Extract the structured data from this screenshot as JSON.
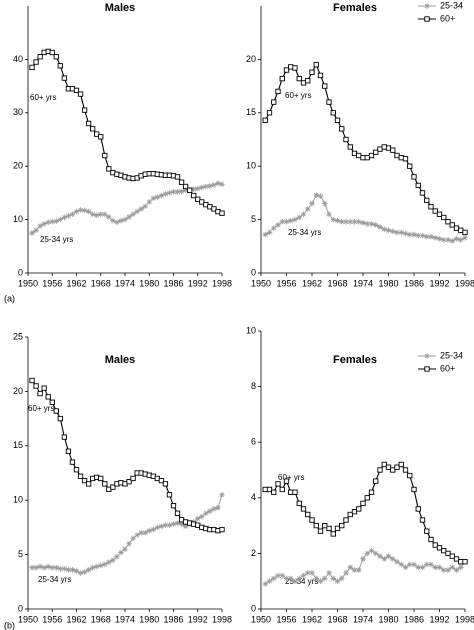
{
  "panel_labels": [
    "(a)",
    "(b)"
  ],
  "chart_data": [
    {
      "type": "line",
      "title": "Males",
      "annotations": [
        "60+ yrs",
        "25-34 yrs"
      ],
      "legend": false,
      "x": [
        1951,
        1952,
        1953,
        1954,
        1955,
        1956,
        1957,
        1958,
        1959,
        1960,
        1961,
        1962,
        1963,
        1964,
        1965,
        1966,
        1967,
        1968,
        1969,
        1970,
        1971,
        1972,
        1973,
        1974,
        1975,
        1976,
        1977,
        1978,
        1979,
        1980,
        1981,
        1982,
        1983,
        1984,
        1985,
        1986,
        1987,
        1988,
        1989,
        1990,
        1991,
        1992,
        1993,
        1994,
        1995,
        1996,
        1997,
        1998
      ],
      "xlim": [
        1950,
        1998
      ],
      "xticks": [
        1950,
        1956,
        1962,
        1968,
        1974,
        1980,
        1986,
        1992,
        1998
      ],
      "ylim": [
        0,
        50
      ],
      "yticks": [
        0,
        10,
        20,
        30,
        40
      ],
      "series": [
        {
          "color": "#999999",
          "marker": "star",
          "values": [
            7.5,
            8,
            8.8,
            9.2,
            9.5,
            9.6,
            9.7,
            10,
            10.4,
            10.7,
            11,
            11.5,
            11.8,
            11.7,
            11.5,
            11,
            10.8,
            11,
            11,
            10.5,
            9.8,
            9.5,
            9.8,
            10,
            10.5,
            11,
            11.5,
            12,
            12.5,
            13.3,
            14,
            14.2,
            14.5,
            14.8,
            15,
            15.2,
            15.2,
            15.3,
            15.5,
            15.6,
            15.7,
            15.8,
            16,
            16.2,
            16.3,
            16.5,
            16.8,
            16.6
          ]
        },
        {
          "color": "#000000",
          "marker": "square",
          "values": [
            38.5,
            39.5,
            40.5,
            41.3,
            41.5,
            41.3,
            40.5,
            38.8,
            36.5,
            34.5,
            34.5,
            34.2,
            33.5,
            30.5,
            28,
            27,
            26,
            25.5,
            22,
            19.5,
            18.8,
            18.5,
            18.3,
            18,
            17.8,
            17.7,
            17.8,
            18.2,
            18.5,
            18.6,
            18.6,
            18.5,
            18.4,
            18.3,
            18.3,
            18.2,
            18,
            17,
            16.2,
            15.5,
            14.5,
            13.8,
            13.3,
            12.8,
            12.4,
            12,
            11.5,
            11.2
          ]
        }
      ]
    },
    {
      "type": "line",
      "title": "Females",
      "annotations": [
        "60+ yrs",
        "25-34 yrs"
      ],
      "legend": true,
      "x": [
        1951,
        1952,
        1953,
        1954,
        1955,
        1956,
        1957,
        1958,
        1959,
        1960,
        1961,
        1962,
        1963,
        1964,
        1965,
        1966,
        1967,
        1968,
        1969,
        1970,
        1971,
        1972,
        1973,
        1974,
        1975,
        1976,
        1977,
        1978,
        1979,
        1980,
        1981,
        1982,
        1983,
        1984,
        1985,
        1986,
        1987,
        1988,
        1989,
        1990,
        1991,
        1992,
        1993,
        1994,
        1995,
        1996,
        1997,
        1998
      ],
      "xlim": [
        1950,
        1998
      ],
      "xticks": [
        1950,
        1956,
        1962,
        1968,
        1974,
        1980,
        1986,
        1992,
        1998
      ],
      "ylim": [
        0,
        25
      ],
      "yticks": [
        0,
        5,
        10,
        15,
        20
      ],
      "series": [
        {
          "name": "25-34",
          "color": "#999999",
          "marker": "star",
          "values": [
            3.6,
            3.8,
            4.2,
            4.5,
            4.8,
            4.8,
            4.9,
            5,
            5.2,
            5.5,
            6,
            6.5,
            7.3,
            7.2,
            6.5,
            5.5,
            5,
            4.9,
            4.8,
            4.8,
            4.8,
            4.8,
            4.8,
            4.7,
            4.6,
            4.6,
            4.5,
            4.3,
            4.1,
            4,
            3.9,
            3.8,
            3.8,
            3.7,
            3.6,
            3.6,
            3.5,
            3.5,
            3.4,
            3.4,
            3.3,
            3.2,
            3.1,
            3.1,
            3,
            3.2,
            3.1,
            3.3
          ]
        },
        {
          "name": "60+",
          "color": "#000000",
          "marker": "square",
          "values": [
            14.3,
            15,
            16,
            17,
            18.2,
            19,
            19.3,
            19.2,
            18.2,
            17.8,
            18,
            18.8,
            19.5,
            18.5,
            17.5,
            16,
            15,
            14.3,
            13.5,
            12.5,
            11.8,
            11.2,
            11,
            10.8,
            10.8,
            11,
            11.3,
            11.6,
            11.8,
            11.7,
            11.5,
            11,
            10.8,
            10.7,
            10,
            9,
            8.2,
            7.5,
            6.8,
            6.2,
            5.8,
            5.5,
            5.2,
            4.8,
            4.5,
            4.2,
            4,
            3.8
          ]
        }
      ]
    },
    {
      "type": "line",
      "title": "Males",
      "annotations": [
        "60+ yrs",
        "25-34 yrs"
      ],
      "legend": false,
      "x": [
        1951,
        1952,
        1953,
        1954,
        1955,
        1956,
        1957,
        1958,
        1959,
        1960,
        1961,
        1962,
        1963,
        1964,
        1965,
        1966,
        1967,
        1968,
        1969,
        1970,
        1971,
        1972,
        1973,
        1974,
        1975,
        1976,
        1977,
        1978,
        1979,
        1980,
        1981,
        1982,
        1983,
        1984,
        1985,
        1986,
        1987,
        1988,
        1989,
        1990,
        1991,
        1992,
        1993,
        1994,
        1995,
        1996,
        1997,
        1998
      ],
      "xlim": [
        1950,
        1998
      ],
      "xticks": [
        1950,
        1956,
        1962,
        1968,
        1974,
        1980,
        1986,
        1992,
        1998
      ],
      "ylim": [
        0,
        25
      ],
      "yticks": [
        0,
        5,
        10,
        15,
        20,
        25
      ],
      "series": [
        {
          "color": "#999999",
          "marker": "star",
          "values": [
            3.8,
            3.8,
            3.9,
            3.8,
            3.9,
            3.8,
            3.8,
            3.7,
            3.7,
            3.6,
            3.6,
            3.5,
            3.3,
            3.4,
            3.6,
            3.8,
            3.9,
            4,
            4.1,
            4.3,
            4.5,
            4.8,
            5.2,
            5.5,
            6,
            6.5,
            6.8,
            7,
            7,
            7.2,
            7.3,
            7.5,
            7.6,
            7.7,
            7.7,
            7.8,
            7.9,
            7.8,
            7.6,
            7.8,
            8,
            8.3,
            8.5,
            8.8,
            9,
            9.2,
            9.3,
            10.5
          ]
        },
        {
          "color": "#000000",
          "marker": "square",
          "values": [
            21,
            20.5,
            19.8,
            20.3,
            19.5,
            19,
            18.2,
            17.5,
            15.8,
            14.5,
            13.5,
            12.8,
            12.2,
            11.8,
            11.5,
            12,
            12.1,
            12,
            11.5,
            11,
            11.2,
            11.5,
            11.6,
            11.5,
            11.7,
            12,
            12.5,
            12.5,
            12.4,
            12.3,
            12.2,
            12,
            11.8,
            11.5,
            10.5,
            9.5,
            8.8,
            8.2,
            8,
            7.9,
            7.8,
            7.7,
            7.5,
            7.4,
            7.3,
            7.3,
            7.2,
            7.3
          ]
        }
      ]
    },
    {
      "type": "line",
      "title": "Females",
      "annotations": [
        "60+ yrs",
        "25-34 yrs"
      ],
      "legend": true,
      "x": [
        1951,
        1952,
        1953,
        1954,
        1955,
        1956,
        1957,
        1958,
        1959,
        1960,
        1961,
        1962,
        1963,
        1964,
        1965,
        1966,
        1967,
        1968,
        1969,
        1970,
        1971,
        1972,
        1973,
        1974,
        1975,
        1976,
        1977,
        1978,
        1979,
        1980,
        1981,
        1982,
        1983,
        1984,
        1985,
        1986,
        1987,
        1988,
        1989,
        1990,
        1991,
        1992,
        1993,
        1994,
        1995,
        1996,
        1997,
        1998
      ],
      "xlim": [
        1950,
        1998
      ],
      "xticks": [
        1950,
        1956,
        1962,
        1968,
        1974,
        1980,
        1986,
        1992,
        1998
      ],
      "ylim": [
        0,
        10
      ],
      "yticks": [
        0,
        2,
        4,
        6,
        8,
        10
      ],
      "series": [
        {
          "name": "25-34",
          "color": "#999999",
          "marker": "star",
          "values": [
            0.9,
            1,
            1.1,
            1.2,
            1.2,
            1.1,
            1.1,
            1,
            1.1,
            1.2,
            1.3,
            1.3,
            1.1,
            1,
            1.1,
            1.3,
            1.1,
            1,
            1.1,
            1.3,
            1.5,
            1.4,
            1.4,
            1.8,
            2,
            2.1,
            2,
            1.9,
            1.8,
            1.9,
            1.8,
            1.7,
            1.6,
            1.5,
            1.6,
            1.6,
            1.5,
            1.5,
            1.6,
            1.6,
            1.5,
            1.5,
            1.4,
            1.4,
            1.5,
            1.4,
            1.5,
            1.7
          ]
        },
        {
          "name": "60+",
          "color": "#000000",
          "marker": "square",
          "values": [
            4.3,
            4.3,
            4.2,
            4.5,
            4.3,
            4.6,
            4.2,
            4.2,
            3.8,
            3.6,
            3.4,
            3.2,
            3,
            2.8,
            3,
            2.9,
            2.7,
            2.9,
            3,
            3.2,
            3.4,
            3.5,
            3.6,
            3.8,
            4,
            4.2,
            4.6,
            5,
            5.2,
            5.1,
            5,
            5.1,
            5.2,
            5,
            4.8,
            4.3,
            3.6,
            3.2,
            2.8,
            2.5,
            2.3,
            2.2,
            2.1,
            2,
            1.9,
            1.8,
            1.7,
            1.7
          ]
        }
      ]
    }
  ]
}
